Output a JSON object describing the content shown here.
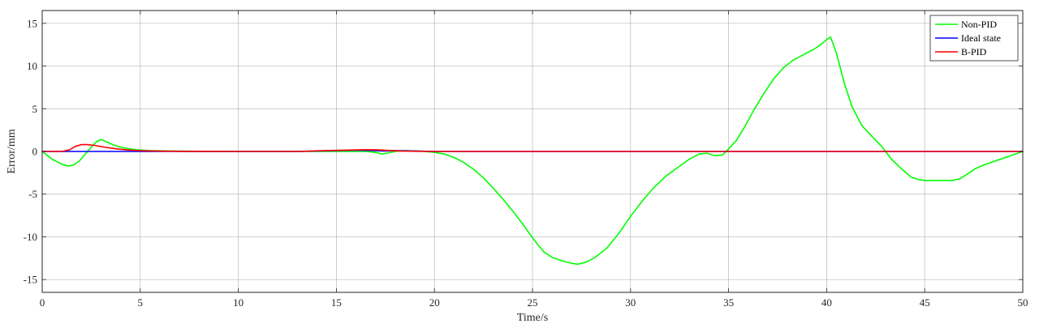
{
  "chart_data": {
    "type": "line",
    "title": "",
    "xlabel": "Time/s",
    "ylabel": "Error/mm",
    "xlim": [
      0,
      50
    ],
    "ylim": [
      -16.5,
      16.5
    ],
    "xticks": [
      0,
      5,
      10,
      15,
      20,
      25,
      30,
      35,
      40,
      45,
      50
    ],
    "yticks": [
      -15,
      -10,
      -5,
      0,
      5,
      10,
      15
    ],
    "grid": true,
    "legend_position": "top-right",
    "series": [
      {
        "name": "Non-PID",
        "color": "#00ff00",
        "x": [
          0,
          0.5,
          1.0,
          1.3,
          1.6,
          1.9,
          2.2,
          2.5,
          2.8,
          3.0,
          3.3,
          3.7,
          4.2,
          4.8,
          5.5,
          6.5,
          8,
          10,
          13,
          15,
          16.5,
          17.0,
          17.3,
          17.6,
          18.0,
          18.5,
          19.5,
          20.0,
          20.5,
          21.0,
          21.5,
          22.0,
          22.5,
          23.0,
          23.5,
          24.0,
          24.5,
          25.0,
          25.3,
          25.6,
          26.0,
          26.5,
          27.0,
          27.3,
          27.7,
          28.2,
          28.8,
          29.4,
          30.0,
          30.6,
          31.2,
          31.8,
          32.4,
          33.0,
          33.5,
          33.9,
          34.3,
          34.7,
          35.0,
          35.4,
          35.8,
          36.3,
          36.8,
          37.3,
          37.8,
          38.3,
          38.8,
          39.3,
          39.7,
          40.0,
          40.2,
          40.5,
          40.9,
          41.3,
          41.8,
          42.3,
          42.8,
          43.3,
          43.8,
          44.3,
          44.7,
          45.0,
          45.5,
          46.0,
          46.4,
          46.8,
          47.2,
          47.6,
          48.0,
          48.5,
          49.0,
          49.5,
          50.0
        ],
        "values": [
          0,
          -0.9,
          -1.5,
          -1.7,
          -1.6,
          -1.1,
          -0.3,
          0.5,
          1.2,
          1.4,
          1.1,
          0.7,
          0.4,
          0.2,
          0.1,
          0.05,
          0.02,
          0.0,
          0.0,
          0.0,
          0.0,
          -0.1,
          -0.3,
          -0.2,
          0.0,
          0.1,
          0.0,
          -0.1,
          -0.3,
          -0.7,
          -1.3,
          -2.1,
          -3.1,
          -4.3,
          -5.6,
          -7.0,
          -8.5,
          -10.1,
          -11.0,
          -11.8,
          -12.4,
          -12.8,
          -13.1,
          -13.2,
          -13.0,
          -12.4,
          -11.3,
          -9.6,
          -7.6,
          -5.8,
          -4.2,
          -2.9,
          -1.9,
          -0.9,
          -0.3,
          -0.2,
          -0.5,
          -0.4,
          0.3,
          1.3,
          2.8,
          4.9,
          6.8,
          8.5,
          9.8,
          10.7,
          11.3,
          11.9,
          12.5,
          13.1,
          13.4,
          11.5,
          8.0,
          5.2,
          3.0,
          1.8,
          0.6,
          -0.9,
          -2.0,
          -3.0,
          -3.3,
          -3.4,
          -3.4,
          -3.4,
          -3.4,
          -3.2,
          -2.6,
          -2.0,
          -1.6,
          -1.2,
          -0.8,
          -0.4,
          0.0
        ]
      },
      {
        "name": "Ideal state",
        "color": "#0000ff",
        "x": [
          0,
          5,
          10,
          13,
          14,
          15,
          16,
          17,
          17.5,
          18,
          19,
          20,
          50
        ],
        "values": [
          0,
          0,
          0,
          0,
          0.05,
          0.1,
          0.15,
          0.1,
          0.05,
          0.1,
          0.05,
          0,
          0
        ]
      },
      {
        "name": "B-PID",
        "color": "#ff0000",
        "x": [
          0,
          1.0,
          1.4,
          1.7,
          2.0,
          2.3,
          2.7,
          3.2,
          3.8,
          4.5,
          5.2,
          6.0,
          7.5,
          10,
          13,
          14.5,
          15.5,
          16.3,
          17.0,
          17.4,
          17.8,
          18.3,
          19.0,
          20.0,
          50
        ],
        "values": [
          0,
          0,
          0.2,
          0.6,
          0.8,
          0.8,
          0.7,
          0.5,
          0.3,
          0.15,
          0.08,
          0.04,
          0.01,
          0,
          0,
          0.1,
          0.15,
          0.2,
          0.2,
          0.15,
          0.1,
          0.05,
          0.02,
          0,
          0
        ]
      }
    ]
  }
}
